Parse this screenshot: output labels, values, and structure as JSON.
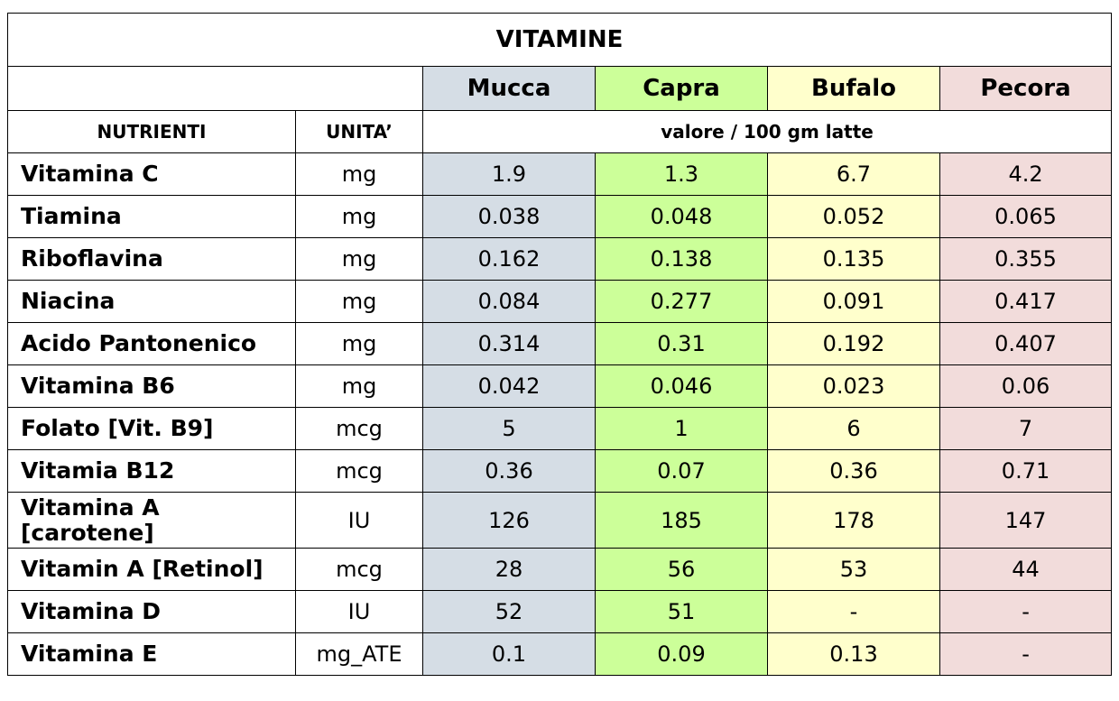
{
  "title": "VITAMINE",
  "header": {
    "animals": [
      "Mucca",
      "Capra",
      "Bufalo",
      "Pecora"
    ],
    "nutrients_label": "NUTRIENTI",
    "unit_label": "UNITA’",
    "value_label": "valore / 100 gm latte"
  },
  "colors": {
    "mucca": "#d5dde5",
    "capra": "#ccff99",
    "bufalo": "#ffffcc",
    "pecora": "#f2dcdb"
  },
  "rows": [
    {
      "nutrient": "Vitamina C",
      "unit": "mg",
      "values": [
        "1.9",
        "1.3",
        "6.7",
        "4.2"
      ]
    },
    {
      "nutrient": "Tiamina",
      "unit": "mg",
      "values": [
        "0.038",
        "0.048",
        "0.052",
        "0.065"
      ]
    },
    {
      "nutrient": "Riboflavina",
      "unit": "mg",
      "values": [
        "0.162",
        "0.138",
        "0.135",
        "0.355"
      ]
    },
    {
      "nutrient": "Niacina",
      "unit": "mg",
      "values": [
        "0.084",
        "0.277",
        "0.091",
        "0.417"
      ]
    },
    {
      "nutrient": "Acido Pantonenico",
      "unit": "mg",
      "values": [
        "0.314",
        "0.31",
        "0.192",
        "0.407"
      ]
    },
    {
      "nutrient": "Vitamina B6",
      "unit": "mg",
      "values": [
        "0.042",
        "0.046",
        "0.023",
        "0.06"
      ]
    },
    {
      "nutrient": "Folato [Vit. B9]",
      "unit": "mcg",
      "values": [
        "5",
        "1",
        "6",
        "7"
      ]
    },
    {
      "nutrient": "Vitamia B12",
      "unit": "mcg",
      "values": [
        "0.36",
        "0.07",
        "0.36",
        "0.71"
      ]
    },
    {
      "nutrient": "Vitamina A [carotene]",
      "unit": "IU",
      "values": [
        "126",
        "185",
        "178",
        "147"
      ]
    },
    {
      "nutrient": "Vitamin A [Retinol]",
      "unit": "mcg",
      "values": [
        "28",
        "56",
        "53",
        "44"
      ]
    },
    {
      "nutrient": "Vitamina D",
      "unit": "IU",
      "values": [
        "52",
        "51",
        "-",
        "-"
      ]
    },
    {
      "nutrient": "Vitamina E",
      "unit": "mg_ATE",
      "values": [
        "0.1",
        "0.09",
        "0.13",
        "-"
      ]
    }
  ]
}
